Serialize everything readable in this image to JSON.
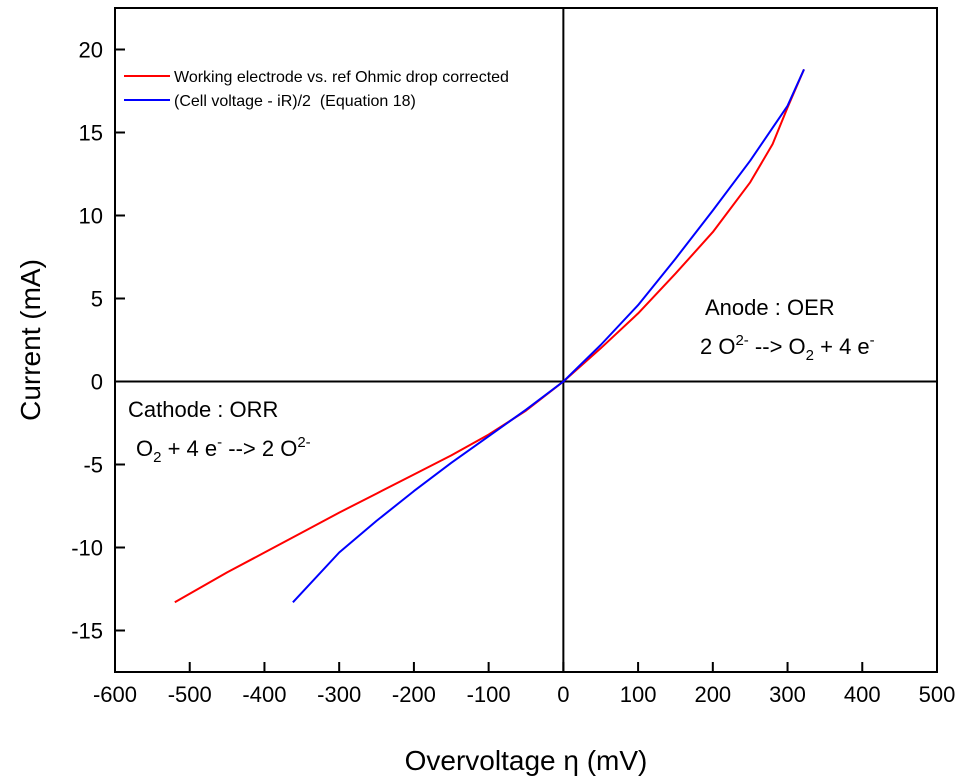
{
  "chart_data": {
    "type": "line",
    "title": "",
    "xlabel": "Overvoltage η (mV)",
    "ylabel": "Current (mA)",
    "xlim": [
      -600,
      500
    ],
    "ylim": [
      -17.5,
      22.5
    ],
    "xticks": [
      -600,
      -500,
      -400,
      -300,
      -200,
      -100,
      0,
      100,
      200,
      300,
      400,
      500
    ],
    "yticks": [
      -15,
      -10,
      -5,
      0,
      5,
      10,
      15,
      20
    ],
    "grid": false,
    "legend_position": "top-left",
    "series": [
      {
        "name": "Working electrode vs. ref Ohmic drop corrected",
        "color": "#ff0000",
        "x": [
          -520,
          -450,
          -400,
          -350,
          -300,
          -250,
          -200,
          -150,
          -100,
          -50,
          0,
          50,
          100,
          150,
          200,
          250,
          280,
          300,
          322
        ],
        "y": [
          -13.3,
          -11.5,
          -10.3,
          -9.1,
          -7.9,
          -6.75,
          -5.6,
          -4.45,
          -3.2,
          -1.75,
          0,
          2.0,
          4.1,
          6.5,
          9.0,
          12.0,
          14.3,
          16.5,
          18.8
        ]
      },
      {
        "name": "(Cell voltage - iR)/2  (Equation 18)",
        "color": "#0000ff",
        "x": [
          -362,
          -300,
          -250,
          -200,
          -150,
          -100,
          -50,
          0,
          50,
          100,
          150,
          200,
          250,
          300,
          322
        ],
        "y": [
          -13.3,
          -10.3,
          -8.4,
          -6.6,
          -4.9,
          -3.3,
          -1.7,
          0,
          2.2,
          4.6,
          7.4,
          10.3,
          13.3,
          16.6,
          18.8
        ]
      }
    ],
    "annotations": [
      {
        "lines": [
          "Anode : OER",
          "2 O2- --> O2 + 4 e-"
        ]
      },
      {
        "lines": [
          "Cathode : ORR",
          "O2 + 4 e- --> 2 O2-"
        ]
      }
    ]
  }
}
